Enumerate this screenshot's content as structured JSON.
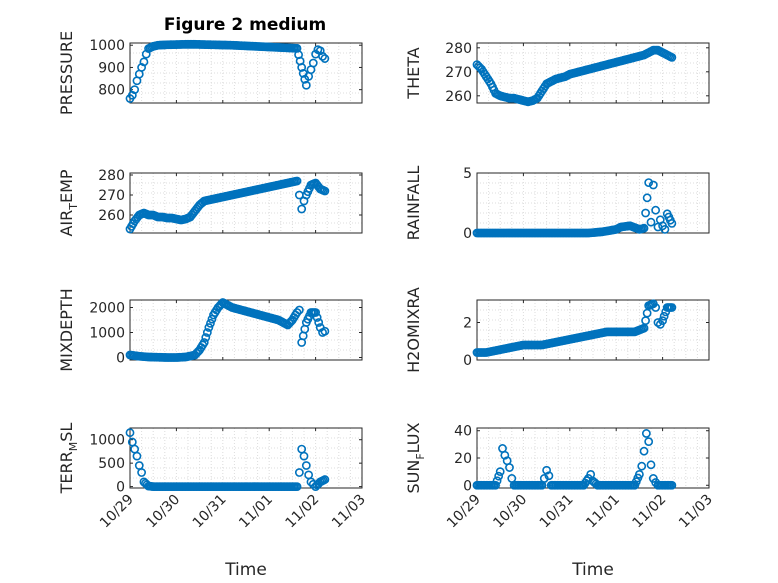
{
  "colors": {
    "marker": "#0072BD",
    "axis": "#262626",
    "grid": "#dcdcdc"
  },
  "figure": {
    "title": "Figure 2 medium"
  },
  "chart_data": [
    {
      "type": "scatter",
      "id": "pressure",
      "title": "Figure 2 medium",
      "ylabel": "PRESSURE",
      "ylabel_main": "PRESSURE",
      "ylabel_sub": "",
      "ylabel_tail": "",
      "xlabel": "",
      "xlim": [
        "10/29",
        "11/03"
      ],
      "ylim": [
        740,
        1010
      ],
      "yticks": [
        800,
        900,
        1000
      ],
      "xticks": [
        "10/29",
        "10/30",
        "10/31",
        "11/01",
        "11/02",
        "11/03"
      ],
      "grid": true,
      "minor_grid": true,
      "x": [
        0.0,
        0.05,
        0.1,
        0.15,
        0.2,
        0.25,
        0.3,
        0.35,
        0.4,
        0.5,
        0.6,
        0.8,
        1.0,
        1.2,
        1.4,
        1.6,
        1.8,
        2.0,
        2.2,
        2.4,
        2.6,
        2.8,
        3.0,
        3.2,
        3.4,
        3.6,
        3.7,
        3.8,
        3.85,
        3.9,
        3.95,
        4.0,
        4.05,
        4.1,
        4.15,
        4.2
      ],
      "y": [
        760,
        775,
        800,
        840,
        870,
        900,
        925,
        960,
        985,
        995,
        1000,
        1002,
        1003,
        1004,
        1004,
        1003,
        1002,
        1001,
        1000,
        998,
        996,
        994,
        992,
        990,
        988,
        986,
        900,
        820,
        860,
        890,
        920,
        960,
        980,
        975,
        950,
        940
      ]
    },
    {
      "type": "scatter",
      "id": "theta",
      "ylabel": "THETA",
      "ylabel_main": "THETA",
      "ylabel_sub": "",
      "ylabel_tail": "",
      "xlabel": "",
      "xlim": [
        "10/29",
        "11/03"
      ],
      "ylim": [
        257,
        282
      ],
      "yticks": [
        260,
        270,
        280
      ],
      "xticks": [
        "10/29",
        "10/30",
        "10/31",
        "11/01",
        "11/02",
        "11/03"
      ],
      "grid": true,
      "minor_grid": true,
      "x": [
        0.0,
        0.1,
        0.2,
        0.3,
        0.4,
        0.5,
        0.6,
        0.7,
        0.8,
        0.9,
        1.0,
        1.1,
        1.2,
        1.3,
        1.4,
        1.5,
        1.6,
        1.7,
        1.8,
        1.9,
        2.0,
        2.2,
        2.4,
        2.6,
        2.8,
        3.0,
        3.2,
        3.4,
        3.6,
        3.8,
        3.9,
        4.0,
        4.1,
        4.2
      ],
      "y": [
        273,
        271,
        268,
        265,
        261,
        260,
        259.5,
        259,
        259,
        258.5,
        258,
        257.5,
        258,
        259,
        262,
        265,
        266,
        267,
        267.5,
        268,
        269,
        270,
        271,
        272,
        273,
        274,
        275,
        276,
        277,
        279,
        279,
        278,
        277,
        276
      ]
    },
    {
      "type": "scatter",
      "id": "air_temp",
      "ylabel": "AIR_TEMP",
      "ylabel_main": "AIR",
      "ylabel_sub": "T",
      "ylabel_tail": "EMP",
      "xlabel": "",
      "xlim": [
        "10/29",
        "11/03"
      ],
      "ylim": [
        251,
        281
      ],
      "yticks": [
        260,
        270,
        280
      ],
      "xticks": [
        "10/29",
        "10/30",
        "10/31",
        "11/01",
        "11/02",
        "11/03"
      ],
      "grid": true,
      "minor_grid": true,
      "x": [
        0.0,
        0.1,
        0.2,
        0.3,
        0.4,
        0.5,
        0.6,
        0.7,
        0.8,
        0.9,
        1.0,
        1.1,
        1.2,
        1.3,
        1.4,
        1.5,
        1.6,
        1.8,
        2.0,
        2.2,
        2.4,
        2.6,
        2.8,
        3.0,
        3.2,
        3.4,
        3.6,
        3.65,
        3.7,
        3.75,
        3.8,
        3.9,
        4.0,
        4.1,
        4.2
      ],
      "y": [
        253,
        257,
        260,
        261,
        260,
        260,
        259,
        259,
        258.5,
        258.5,
        258,
        257.5,
        258,
        259,
        262,
        265,
        267,
        268,
        269,
        270,
        271,
        272,
        273,
        274,
        275,
        276,
        277,
        270,
        263,
        267,
        270,
        275,
        276,
        273,
        272
      ]
    },
    {
      "type": "scatter",
      "id": "rainfall",
      "ylabel": "RAINFALL",
      "ylabel_main": "RAINFALL",
      "ylabel_sub": "",
      "ylabel_tail": "",
      "xlabel": "",
      "xlim": [
        "10/29",
        "11/03"
      ],
      "ylim": [
        0,
        5
      ],
      "yticks": [
        0,
        5
      ],
      "xticks": [
        "10/29",
        "10/30",
        "10/31",
        "11/01",
        "11/02",
        "11/03"
      ],
      "grid": true,
      "minor_grid": true,
      "x": [
        0.0,
        0.3,
        0.6,
        0.9,
        1.2,
        1.5,
        1.8,
        2.1,
        2.4,
        2.7,
        3.0,
        3.1,
        3.3,
        3.5,
        3.6,
        3.7,
        3.75,
        3.8,
        3.85,
        3.9,
        3.95,
        4.0,
        4.05,
        4.1,
        4.2
      ],
      "y": [
        0,
        0,
        0,
        0,
        0,
        0,
        0,
        0,
        0,
        0.1,
        0.3,
        0.5,
        0.6,
        0.3,
        0.4,
        4.2,
        0.9,
        4.0,
        1.9,
        0.5,
        1.1,
        0.6,
        0.3,
        1.6,
        0.8
      ]
    },
    {
      "type": "scatter",
      "id": "mixdepth",
      "ylabel": "MIXDEPTH",
      "ylabel_main": "MIXDEPTH",
      "ylabel_sub": "",
      "ylabel_tail": "",
      "xlabel": "",
      "xlim": [
        "10/29",
        "11/03"
      ],
      "ylim": [
        -100,
        2300
      ],
      "yticks": [
        0,
        1000,
        2000
      ],
      "xticks": [
        "10/29",
        "10/30",
        "10/31",
        "11/01",
        "11/02",
        "11/03"
      ],
      "grid": true,
      "minor_grid": true,
      "x": [
        0.0,
        0.2,
        0.4,
        0.6,
        0.8,
        1.0,
        1.2,
        1.4,
        1.5,
        1.6,
        1.7,
        1.8,
        1.9,
        2.0,
        2.2,
        2.4,
        2.6,
        2.8,
        3.0,
        3.2,
        3.4,
        3.5,
        3.6,
        3.65,
        3.7,
        3.8,
        3.9,
        4.0,
        4.1,
        4.15,
        4.2
      ],
      "y": [
        100,
        50,
        20,
        10,
        0,
        0,
        20,
        100,
        300,
        600,
        1200,
        1700,
        2000,
        2200,
        2000,
        1900,
        1800,
        1700,
        1600,
        1500,
        1300,
        1500,
        1800,
        1900,
        600,
        1400,
        1800,
        1800,
        1200,
        1000,
        1050
      ]
    },
    {
      "type": "scatter",
      "id": "h2omixra",
      "ylabel": "H2OMIXRA",
      "ylabel_main": "H2OMIXRA",
      "ylabel_sub": "",
      "ylabel_tail": "",
      "xlabel": "",
      "xlim": [
        "10/29",
        "11/03"
      ],
      "ylim": [
        0,
        3.2
      ],
      "yticks": [
        0,
        2
      ],
      "xticks": [
        "10/29",
        "10/30",
        "10/31",
        "11/01",
        "11/02",
        "11/03"
      ],
      "grid": true,
      "minor_grid": true,
      "x": [
        0.0,
        0.2,
        0.4,
        0.6,
        0.8,
        1.0,
        1.2,
        1.4,
        1.6,
        1.8,
        2.0,
        2.2,
        2.4,
        2.6,
        2.8,
        3.0,
        3.2,
        3.4,
        3.5,
        3.6,
        3.7,
        3.8,
        3.85,
        3.9,
        3.95,
        4.0,
        4.1,
        4.2
      ],
      "y": [
        0.4,
        0.4,
        0.5,
        0.6,
        0.7,
        0.8,
        0.8,
        0.8,
        0.9,
        1.0,
        1.1,
        1.2,
        1.3,
        1.4,
        1.5,
        1.5,
        1.5,
        1.5,
        1.6,
        1.7,
        2.9,
        3.0,
        2.8,
        2.0,
        1.9,
        2.1,
        2.8,
        2.8
      ]
    },
    {
      "type": "scatter",
      "id": "terr_msl",
      "ylabel": "TERR_MSL",
      "ylabel_main": "TERR",
      "ylabel_sub": "M",
      "ylabel_tail": "SL",
      "xlabel": "Time",
      "xlim": [
        "10/29",
        "11/03"
      ],
      "ylim": [
        -30,
        1250
      ],
      "yticks": [
        0,
        500,
        1000
      ],
      "xticks": [
        "10/29",
        "10/30",
        "10/31",
        "11/01",
        "11/02",
        "11/03"
      ],
      "grid": true,
      "minor_grid": true,
      "x": [
        0.0,
        0.05,
        0.1,
        0.15,
        0.2,
        0.25,
        0.3,
        0.4,
        0.5,
        0.6,
        0.8,
        1.0,
        1.2,
        1.4,
        1.6,
        1.8,
        2.0,
        2.2,
        2.4,
        2.6,
        2.8,
        3.0,
        3.2,
        3.4,
        3.6,
        3.65,
        3.7,
        3.75,
        3.8,
        3.85,
        3.9,
        3.95,
        4.0,
        4.1,
        4.2
      ],
      "y": [
        1150,
        950,
        800,
        650,
        450,
        300,
        100,
        10,
        0,
        0,
        0,
        0,
        0,
        0,
        0,
        0,
        0,
        0,
        0,
        0,
        0,
        0,
        0,
        0,
        0,
        300,
        800,
        650,
        450,
        250,
        100,
        50,
        0,
        100,
        150
      ]
    },
    {
      "type": "scatter",
      "id": "sun_flux",
      "ylabel": "SUN_FLUX",
      "ylabel_main": "SUN",
      "ylabel_sub": "F",
      "ylabel_tail": "LUX",
      "xlabel": "Time",
      "xlim": [
        "10/29",
        "11/03"
      ],
      "ylim": [
        -2,
        42
      ],
      "yticks": [
        0,
        20,
        40
      ],
      "xticks": [
        "10/29",
        "10/30",
        "10/31",
        "11/01",
        "11/02",
        "11/03"
      ],
      "grid": true,
      "minor_grid": true,
      "x": [
        0.0,
        0.2,
        0.4,
        0.5,
        0.55,
        0.6,
        0.65,
        0.7,
        0.75,
        0.8,
        0.9,
        1.0,
        1.2,
        1.4,
        1.45,
        1.5,
        1.55,
        1.6,
        1.7,
        1.8,
        2.0,
        2.3,
        2.4,
        2.45,
        2.5,
        2.6,
        2.8,
        3.0,
        3.2,
        3.4,
        3.5,
        3.55,
        3.6,
        3.65,
        3.7,
        3.75,
        3.8,
        3.85,
        3.9,
        4.0,
        4.1,
        4.2
      ],
      "y": [
        0,
        0,
        0,
        10,
        27,
        22,
        18,
        13,
        5,
        0,
        0,
        0,
        0,
        0,
        5,
        11,
        7,
        0,
        0,
        0,
        0,
        0,
        5,
        8,
        3,
        0,
        0,
        0,
        0,
        0,
        8,
        14,
        25,
        38,
        32,
        15,
        5,
        2,
        0,
        0,
        0,
        0
      ]
    }
  ]
}
